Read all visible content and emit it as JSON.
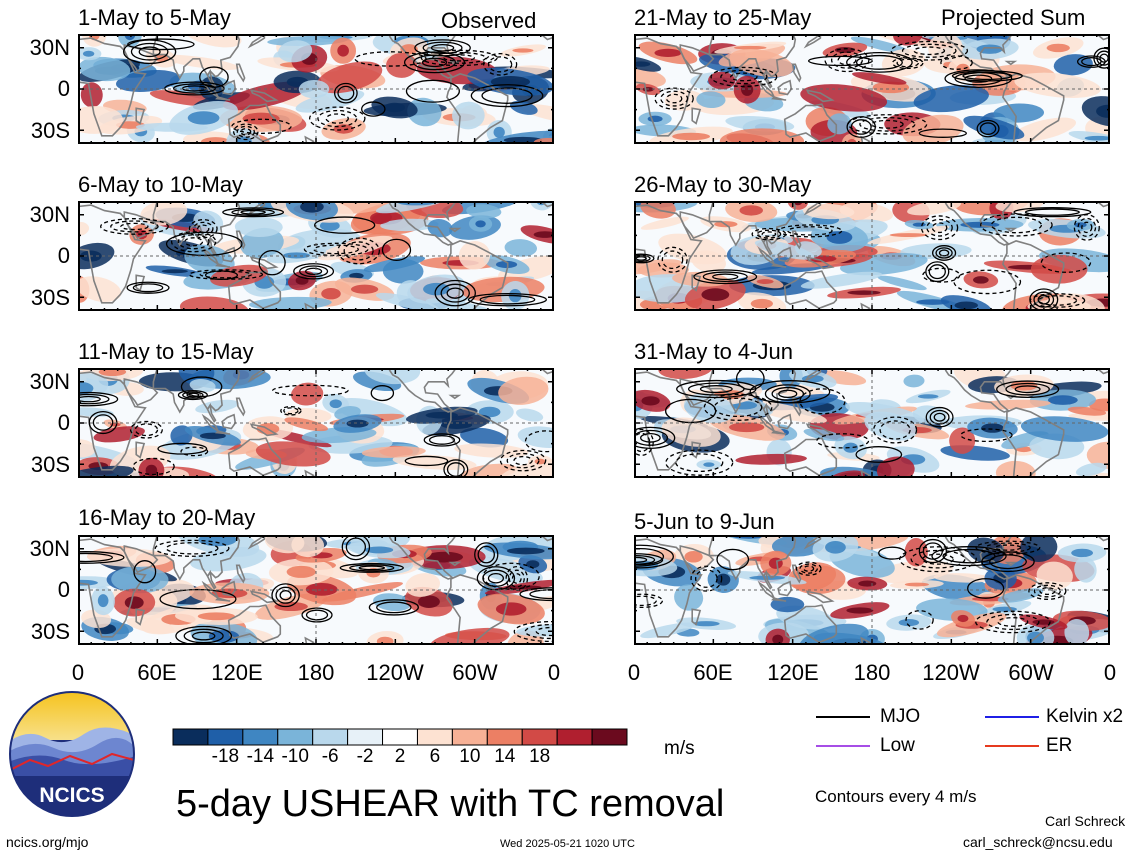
{
  "colors": {
    "neg": [
      "#0a2d5c",
      "#1f5fa8",
      "#3f86c2",
      "#7ab4d9",
      "#b9d8ec",
      "#e7f1f8"
    ],
    "zero": "#ffffff",
    "pos": [
      "#fde2d2",
      "#f7b196",
      "#ec7f64",
      "#d24a46",
      "#b01f2f",
      "#6b0a1e"
    ],
    "land": "#808080",
    "contour": "#000000",
    "mjo": "#000000",
    "kelvin": "#1f1fe6",
    "low": "#a64de6",
    "er": "#e63a1f"
  },
  "panels": [
    {
      "id": "p1",
      "title": "1-May to 5-May",
      "tag": "Observed"
    },
    {
      "id": "p2",
      "title": "21-May to 25-May",
      "tag": "Projected Sum"
    },
    {
      "id": "p3",
      "title": "6-May to 10-May",
      "tag": ""
    },
    {
      "id": "p4",
      "title": "26-May to 30-May",
      "tag": ""
    },
    {
      "id": "p5",
      "title": "11-May to 15-May",
      "tag": ""
    },
    {
      "id": "p6",
      "title": "31-May to 4-Jun",
      "tag": ""
    },
    {
      "id": "p7",
      "title": "16-May to 20-May",
      "tag": ""
    },
    {
      "id": "p8",
      "title": "5-Jun to 9-Jun",
      "tag": ""
    }
  ],
  "y_ticks": [
    "30N",
    "0",
    "30S"
  ],
  "x_ticks": [
    "0",
    "60E",
    "120E",
    "180",
    "120W",
    "60W",
    "0"
  ],
  "colorbar": {
    "ticks": [
      "-18",
      "-14",
      "-10",
      "-6",
      "-2",
      "2",
      "6",
      "10",
      "14",
      "18"
    ],
    "unit": "m/s"
  },
  "legend": {
    "items": [
      {
        "label": "MJO",
        "color_key": "mjo"
      },
      {
        "label": "Kelvin x2",
        "color_key": "kelvin"
      },
      {
        "label": "Low",
        "color_key": "low"
      },
      {
        "label": "ER",
        "color_key": "er"
      }
    ],
    "contours_note": "Contours every 4 m/s"
  },
  "logo_text": "NCICS",
  "main_title": "5-day USHEAR with TC removal",
  "footer": {
    "site": "ncics.org/mjo",
    "timestamp": "Wed 2025-05-21 1020 UTC",
    "author": "Carl Schreck",
    "email": "carl_schreck@ncsu.edu"
  }
}
